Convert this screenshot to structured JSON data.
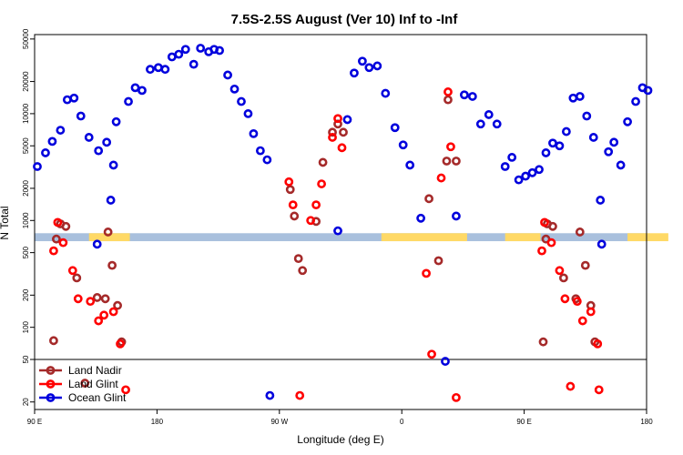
{
  "chart_data": {
    "type": "scatter",
    "title": "7.5S-2.5S August (Ver 10)   Inf to -Inf",
    "xlabel": "Longitude (deg E)",
    "ylabel": "N Total",
    "x_ticks": [
      {
        "value": 90,
        "label": "90 E"
      },
      {
        "value": 180,
        "label": "180"
      },
      {
        "value": 270,
        "label": "90 W"
      },
      {
        "value": 360,
        "label": "0"
      },
      {
        "value": 450,
        "label": "90 E"
      },
      {
        "value": 540,
        "label": "180"
      }
    ],
    "y_ticks": [
      20,
      50,
      100,
      200,
      500,
      1000,
      2000,
      5000,
      10000,
      20000,
      50000
    ],
    "xlim": [
      90,
      540
    ],
    "ylim": [
      17,
      55000
    ],
    "y_scale": "log",
    "grid": false,
    "reference_line": 50,
    "legend_position": "bottom-left",
    "land_band": {
      "y_low": 640,
      "y_high": 760,
      "base_color": "#a9c0dd",
      "land_color": "#ffd966",
      "land_segments": [
        [
          130,
          160
        ],
        [
          345,
          408
        ],
        [
          436,
          462
        ],
        [
          526,
          556
        ]
      ]
    },
    "series": [
      {
        "name": "Land Nadir",
        "color": "#a52a2a",
        "points": [
          [
            104,
            75
          ],
          [
            106,
            670
          ],
          [
            109,
            930
          ],
          [
            113,
            880
          ],
          [
            121,
            290
          ],
          [
            127,
            30
          ],
          [
            136,
            190
          ],
          [
            142,
            185
          ],
          [
            144,
            780
          ],
          [
            147,
            380
          ],
          [
            151,
            160
          ],
          [
            154,
            73
          ],
          [
            278,
            1950
          ],
          [
            281,
            1100
          ],
          [
            284,
            440
          ],
          [
            287,
            340
          ],
          [
            297,
            980
          ],
          [
            302,
            3500
          ],
          [
            309,
            6700
          ],
          [
            313,
            8000
          ],
          [
            317,
            6700
          ],
          [
            380,
            1600
          ],
          [
            387,
            420
          ],
          [
            393,
            3600
          ],
          [
            394,
            13500
          ],
          [
            400,
            3600
          ],
          [
            464,
            73
          ],
          [
            466,
            670
          ],
          [
            467,
            930
          ],
          [
            471,
            880
          ],
          [
            479,
            290
          ],
          [
            488,
            185
          ],
          [
            491,
            780
          ],
          [
            495,
            380
          ],
          [
            499,
            160
          ],
          [
            502,
            73
          ]
        ]
      },
      {
        "name": "Land Glint",
        "color": "#ff0000",
        "points": [
          [
            104,
            520
          ],
          [
            107,
            960
          ],
          [
            111,
            620
          ],
          [
            118,
            340
          ],
          [
            122,
            185
          ],
          [
            131,
            175
          ],
          [
            137,
            115
          ],
          [
            141,
            130
          ],
          [
            148,
            140
          ],
          [
            153,
            70
          ],
          [
            157,
            26
          ],
          [
            277,
            2300
          ],
          [
            280,
            1400
          ],
          [
            285,
            23
          ],
          [
            293,
            1000
          ],
          [
            297,
            1400
          ],
          [
            301,
            2200
          ],
          [
            309,
            6000
          ],
          [
            313,
            9000
          ],
          [
            316,
            4800
          ],
          [
            378,
            320
          ],
          [
            382,
            56
          ],
          [
            389,
            2500
          ],
          [
            394,
            16000
          ],
          [
            396,
            4900
          ],
          [
            400,
            22
          ],
          [
            463,
            520
          ],
          [
            465,
            960
          ],
          [
            470,
            620
          ],
          [
            476,
            340
          ],
          [
            480,
            185
          ],
          [
            484,
            28
          ],
          [
            489,
            175
          ],
          [
            493,
            115
          ],
          [
            499,
            140
          ],
          [
            504,
            70
          ],
          [
            505,
            26
          ]
        ]
      },
      {
        "name": "Ocean Glint",
        "color": "#0000dd",
        "points": [
          [
            92,
            3200
          ],
          [
            98,
            4300
          ],
          [
            103,
            5500
          ],
          [
            109,
            7000
          ],
          [
            114,
            13500
          ],
          [
            119,
            14000
          ],
          [
            124,
            9500
          ],
          [
            130,
            6000
          ],
          [
            136,
            600
          ],
          [
            137,
            4500
          ],
          [
            143,
            5400
          ],
          [
            146,
            1550
          ],
          [
            148,
            3300
          ],
          [
            150,
            8400
          ],
          [
            159,
            13000
          ],
          [
            164,
            17500
          ],
          [
            169,
            16500
          ],
          [
            175,
            26000
          ],
          [
            181,
            27000
          ],
          [
            186,
            26000
          ],
          [
            191,
            34000
          ],
          [
            196,
            36000
          ],
          [
            201,
            40000
          ],
          [
            207,
            29000
          ],
          [
            212,
            41000
          ],
          [
            218,
            38000
          ],
          [
            222,
            40000
          ],
          [
            226,
            39000
          ],
          [
            232,
            23000
          ],
          [
            237,
            17000
          ],
          [
            242,
            13000
          ],
          [
            247,
            10000
          ],
          [
            251,
            6500
          ],
          [
            256,
            4500
          ],
          [
            261,
            3700
          ],
          [
            263,
            23
          ],
          [
            313,
            800
          ],
          [
            320,
            8800
          ],
          [
            325,
            24000
          ],
          [
            331,
            31000
          ],
          [
            336,
            27000
          ],
          [
            342,
            28000
          ],
          [
            348,
            15500
          ],
          [
            355,
            7400
          ],
          [
            361,
            5100
          ],
          [
            366,
            3300
          ],
          [
            374,
            1050
          ],
          [
            392,
            48
          ],
          [
            400,
            1100
          ],
          [
            406,
            15000
          ],
          [
            412,
            14500
          ],
          [
            418,
            8000
          ],
          [
            424,
            9800
          ],
          [
            430,
            8000
          ],
          [
            436,
            3200
          ],
          [
            441,
            3900
          ],
          [
            446,
            2400
          ],
          [
            451,
            2600
          ],
          [
            456,
            2800
          ],
          [
            461,
            3000
          ],
          [
            466,
            4300
          ],
          [
            471,
            5300
          ],
          [
            476,
            5000
          ],
          [
            481,
            6800
          ],
          [
            486,
            14000
          ],
          [
            491,
            14500
          ],
          [
            496,
            9500
          ],
          [
            501,
            6000
          ],
          [
            506,
            1550
          ],
          [
            507,
            600
          ],
          [
            512,
            4400
          ],
          [
            516,
            5400
          ],
          [
            521,
            3300
          ],
          [
            526,
            8400
          ],
          [
            532,
            13000
          ],
          [
            537,
            17500
          ],
          [
            541,
            16500
          ]
        ]
      }
    ]
  }
}
